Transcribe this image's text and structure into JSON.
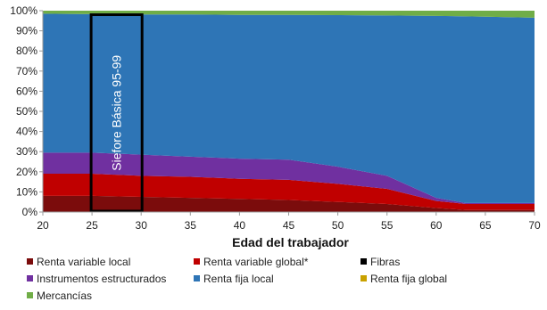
{
  "chart_data": {
    "type": "area",
    "stacked": true,
    "title": "",
    "xlabel": "Edad del trabajador",
    "ylabel": "",
    "x": [
      20,
      25,
      30,
      35,
      40,
      45,
      50,
      55,
      60,
      63,
      65,
      70
    ],
    "xticks": [
      "20",
      "25",
      "30",
      "35",
      "40",
      "45",
      "50",
      "55",
      "60",
      "65",
      "70"
    ],
    "xlim": [
      20,
      70
    ],
    "ylim": [
      0,
      100
    ],
    "yticks": [
      "0%",
      "10%",
      "20%",
      "30%",
      "40%",
      "50%",
      "60%",
      "70%",
      "80%",
      "90%",
      "100%"
    ],
    "grid": false,
    "legend_position": "bottom",
    "series": [
      {
        "name": "Renta variable local",
        "color": "#7b0c0c",
        "values": [
          8,
          8,
          7.5,
          7,
          6.5,
          6,
          5,
          4,
          2,
          1,
          1,
          1
        ]
      },
      {
        "name": "Renta variable global*",
        "color": "#c00000",
        "values": [
          11,
          11,
          10.5,
          10.5,
          10,
          10,
          9,
          7.5,
          3.5,
          3,
          3,
          3
        ]
      },
      {
        "name": "Fibras",
        "color": "#000000",
        "values": [
          0,
          0,
          0,
          0,
          0,
          0,
          0,
          0,
          0,
          0,
          0,
          0
        ]
      },
      {
        "name": "Instrumentos estructurados",
        "color": "#7030a0",
        "values": [
          10.5,
          10.5,
          10.5,
          10,
          10,
          10,
          8.5,
          6.5,
          1.5,
          0.5,
          0.5,
          0.5
        ]
      },
      {
        "name": "Renta fija local",
        "color": "#2e75b6",
        "values": [
          69,
          68.8,
          69.6,
          70.6,
          71.4,
          71.9,
          75.3,
          79.6,
          90.4,
          92.7,
          92.5,
          92
        ]
      },
      {
        "name": "Renta fija global",
        "color": "#c9a100",
        "values": [
          0,
          0,
          0,
          0,
          0,
          0,
          0,
          0,
          0,
          0,
          0,
          0
        ]
      },
      {
        "name": "Mercancías",
        "color": "#70ad47",
        "values": [
          1.5,
          1.7,
          1.9,
          1.9,
          2.1,
          2.1,
          2.2,
          2.4,
          2.6,
          2.8,
          3,
          3.5
        ]
      }
    ],
    "annotation": {
      "label": "Siefore Básica 95-99",
      "x_range": [
        25,
        30
      ],
      "y_range": [
        0,
        98
      ]
    }
  }
}
